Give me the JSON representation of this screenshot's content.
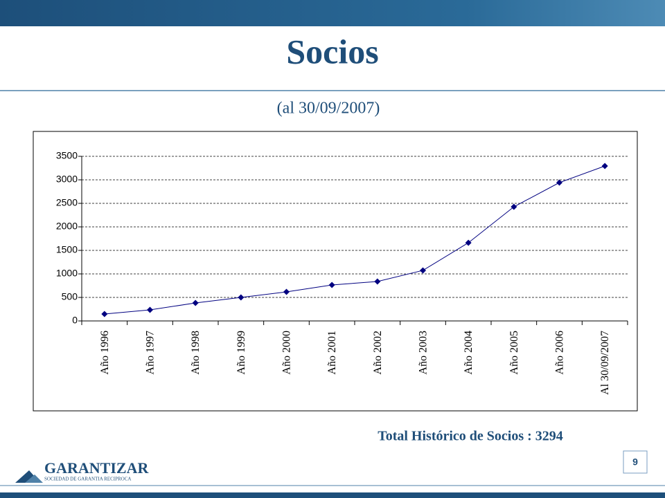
{
  "slide": {
    "title": "Socios",
    "subtitle": "(al 30/09/2007)",
    "total": "Total Histórico de Socios : 3294",
    "page_number": "9",
    "logo": {
      "name": "GARANTIZAR",
      "tagline": "SOCIEDAD DE GARANTIA RECIPROCA"
    }
  },
  "chart_data": {
    "type": "line",
    "categories": [
      "Año 1996",
      "Año 1997",
      "Año 1998",
      "Año 1999",
      "Año 2000",
      "Año 2001",
      "Año 2002",
      "Año 2003",
      "Año 2004",
      "Año 2005",
      "Año 2006",
      "Al 30/09/2007"
    ],
    "series": [
      {
        "name": "Socios",
        "color": "#000080",
        "values": [
          147,
          235,
          382,
          500,
          618,
          765,
          838,
          1074,
          1662,
          2426,
          2941,
          3294
        ]
      }
    ],
    "ylim": [
      0,
      3500
    ],
    "yticks": [
      0,
      500,
      1000,
      1500,
      2000,
      2500,
      3000,
      3500
    ],
    "grid": true
  }
}
